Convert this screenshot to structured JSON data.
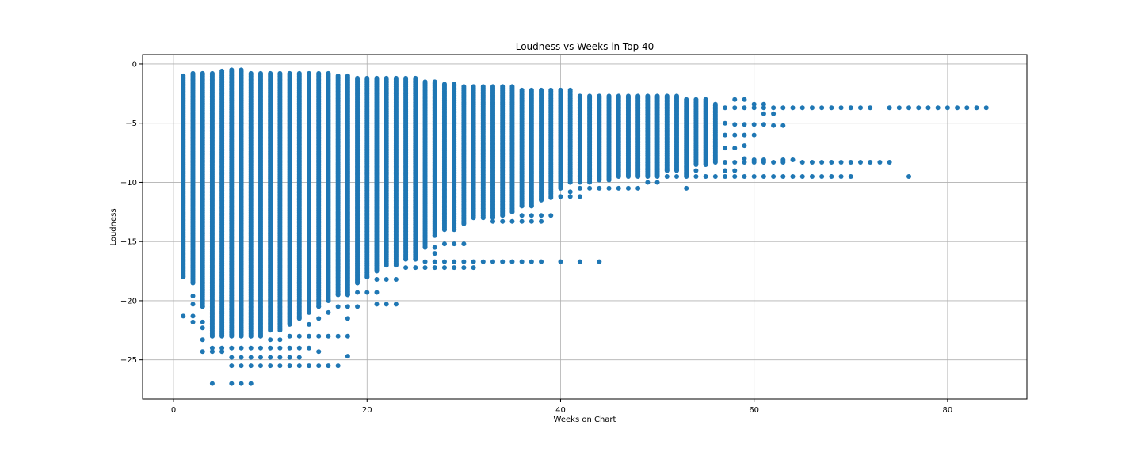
{
  "chart_data": {
    "type": "scatter",
    "title": "Loudness vs Weeks in Top 40",
    "xlabel": "Weeks on Chart",
    "ylabel": "Loudness",
    "xlim": [
      -3.2,
      88.2
    ],
    "ylim": [
      -28.3,
      0.8
    ],
    "x_ticks": [
      0,
      20,
      40,
      60,
      80
    ],
    "y_ticks": [
      0,
      -5,
      -10,
      -15,
      -20,
      -25
    ],
    "x_tick_labels": [
      "0",
      "20",
      "40",
      "60",
      "80"
    ],
    "y_tick_labels": [
      "0",
      "−5",
      "−10",
      "−15",
      "−20",
      "−25"
    ],
    "grid": true,
    "legend": "none",
    "marker_color": "#1f77b4",
    "series": [
      {
        "columns": [
          {
            "x": 1,
            "min": -18.0,
            "max": -1.0,
            "extra": [
              -21.3
            ]
          },
          {
            "x": 2,
            "min": -18.5,
            "max": -0.8,
            "extra": [
              -19.6,
              -20.3,
              -21.3,
              -21.8
            ]
          },
          {
            "x": 3,
            "min": -20.5,
            "max": -0.8,
            "extra": [
              -21.8,
              -22.3,
              -23.3,
              -24.3
            ]
          },
          {
            "x": 4,
            "min": -23.0,
            "max": -0.8,
            "extra": [
              -24.0,
              -24.3,
              -27.0
            ]
          },
          {
            "x": 5,
            "min": -23.0,
            "max": -0.6,
            "extra": [
              -24.0,
              -24.3
            ]
          },
          {
            "x": 6,
            "min": -23.0,
            "max": -0.5,
            "extra": [
              -24.0,
              -24.8,
              -25.5,
              -27.0
            ]
          },
          {
            "x": 7,
            "min": -23.0,
            "max": -0.5,
            "extra": [
              -24.0,
              -24.8,
              -25.5,
              -27.0
            ]
          },
          {
            "x": 8,
            "min": -23.0,
            "max": -0.8,
            "extra": [
              -24.0,
              -24.8,
              -25.5,
              -27.0
            ]
          },
          {
            "x": 9,
            "min": -23.0,
            "max": -0.8,
            "extra": [
              -24.0,
              -24.8,
              -25.5
            ]
          },
          {
            "x": 10,
            "min": -22.5,
            "max": -0.8,
            "extra": [
              -23.3,
              -24.0,
              -24.8,
              -25.5
            ]
          },
          {
            "x": 11,
            "min": -22.5,
            "max": -0.8,
            "extra": [
              -23.3,
              -24.0,
              -24.8,
              -25.5
            ]
          },
          {
            "x": 12,
            "min": -22.0,
            "max": -0.8,
            "extra": [
              -23.0,
              -24.0,
              -24.8,
              -25.5
            ]
          },
          {
            "x": 13,
            "min": -21.5,
            "max": -0.8,
            "extra": [
              -23.0,
              -24.0,
              -24.8,
              -25.5
            ]
          },
          {
            "x": 14,
            "min": -21.0,
            "max": -0.8,
            "extra": [
              -22.0,
              -23.0,
              -24.0,
              -25.5
            ]
          },
          {
            "x": 15,
            "min": -20.5,
            "max": -0.8,
            "extra": [
              -21.5,
              -23.0,
              -24.3,
              -25.5
            ]
          },
          {
            "x": 16,
            "min": -20.0,
            "max": -0.8,
            "extra": [
              -21.0,
              -23.0,
              -25.5
            ]
          },
          {
            "x": 17,
            "min": -19.5,
            "max": -1.0,
            "extra": [
              -20.5,
              -23.0,
              -25.5
            ]
          },
          {
            "x": 18,
            "min": -19.5,
            "max": -1.0,
            "extra": [
              -20.5,
              -21.5,
              -23.0,
              -24.7
            ]
          },
          {
            "x": 19,
            "min": -18.5,
            "max": -1.2,
            "extra": [
              -19.3,
              -20.5
            ]
          },
          {
            "x": 20,
            "min": -18.0,
            "max": -1.2,
            "extra": [
              -19.3
            ]
          },
          {
            "x": 21,
            "min": -17.5,
            "max": -1.2,
            "extra": [
              -18.2,
              -19.3,
              -20.3
            ]
          },
          {
            "x": 22,
            "min": -17.0,
            "max": -1.2,
            "extra": [
              -18.2,
              -20.3
            ]
          },
          {
            "x": 23,
            "min": -17.0,
            "max": -1.2,
            "extra": [
              -18.2,
              -20.3
            ]
          },
          {
            "x": 24,
            "min": -16.5,
            "max": -1.2,
            "extra": [
              -17.2
            ]
          },
          {
            "x": 25,
            "min": -16.5,
            "max": -1.2,
            "extra": [
              -17.2
            ]
          },
          {
            "x": 26,
            "min": -15.5,
            "max": -1.5,
            "extra": [
              -16.7,
              -17.2
            ]
          },
          {
            "x": 27,
            "min": -14.5,
            "max": -1.5,
            "extra": [
              -15.5,
              -16.0,
              -16.7,
              -17.2
            ]
          },
          {
            "x": 28,
            "min": -14.0,
            "max": -1.7,
            "extra": [
              -15.2,
              -16.7,
              -17.2
            ]
          },
          {
            "x": 29,
            "min": -14.0,
            "max": -1.7,
            "extra": [
              -15.2,
              -16.7,
              -17.2
            ]
          },
          {
            "x": 30,
            "min": -13.5,
            "max": -1.9,
            "extra": [
              -15.2,
              -16.7,
              -17.2
            ]
          },
          {
            "x": 31,
            "min": -13.0,
            "max": -1.9,
            "extra": [
              -16.7,
              -17.2
            ]
          },
          {
            "x": 32,
            "min": -13.0,
            "max": -1.9,
            "extra": [
              -16.7
            ]
          },
          {
            "x": 33,
            "min": -13.0,
            "max": -1.9,
            "extra": [
              -13.3,
              -16.7
            ]
          },
          {
            "x": 34,
            "min": -12.8,
            "max": -1.9,
            "extra": [
              -13.3,
              -16.7
            ]
          },
          {
            "x": 35,
            "min": -12.5,
            "max": -1.9,
            "extra": [
              -13.3,
              -16.7
            ]
          },
          {
            "x": 36,
            "min": -12.0,
            "max": -2.2,
            "extra": [
              -12.8,
              -13.3,
              -16.7
            ]
          },
          {
            "x": 37,
            "min": -12.0,
            "max": -2.2,
            "extra": [
              -12.8,
              -13.3,
              -16.7
            ]
          },
          {
            "x": 38,
            "min": -11.5,
            "max": -2.2,
            "extra": [
              -12.8,
              -13.3,
              -16.7
            ]
          },
          {
            "x": 39,
            "min": -11.3,
            "max": -2.2,
            "extra": [
              -12.8
            ]
          },
          {
            "x": 40,
            "min": -10.5,
            "max": -2.2,
            "extra": [
              -11.2,
              -16.7
            ]
          },
          {
            "x": 41,
            "min": -10.0,
            "max": -2.2,
            "extra": [
              -10.8,
              -11.2
            ]
          },
          {
            "x": 42,
            "min": -10.0,
            "max": -2.7,
            "extra": [
              -10.5,
              -11.2,
              -16.7
            ]
          },
          {
            "x": 43,
            "min": -10.0,
            "max": -2.7,
            "extra": [
              -10.5
            ]
          },
          {
            "x": 44,
            "min": -9.8,
            "max": -2.7,
            "extra": [
              -10.5,
              -16.7
            ]
          },
          {
            "x": 45,
            "min": -9.8,
            "max": -2.7,
            "extra": [
              -10.5
            ]
          },
          {
            "x": 46,
            "min": -9.5,
            "max": -2.7,
            "extra": [
              -10.5
            ]
          },
          {
            "x": 47,
            "min": -9.5,
            "max": -2.7,
            "extra": [
              -10.5
            ]
          },
          {
            "x": 48,
            "min": -9.5,
            "max": -2.7,
            "extra": [
              -10.5
            ]
          },
          {
            "x": 49,
            "min": -9.5,
            "max": -2.7,
            "extra": [
              -10.0
            ]
          },
          {
            "x": 50,
            "min": -9.5,
            "max": -2.7,
            "extra": [
              -10.0
            ]
          },
          {
            "x": 51,
            "min": -9.0,
            "max": -2.7,
            "extra": [
              -9.5
            ]
          },
          {
            "x": 52,
            "min": -9.0,
            "max": -2.7,
            "extra": [
              -9.5
            ]
          },
          {
            "x": 53,
            "min": -9.5,
            "max": -3.0,
            "extra": [
              -10.5
            ]
          },
          {
            "x": 54,
            "min": -8.5,
            "max": -3.0,
            "extra": [
              -9.0,
              -9.5
            ]
          },
          {
            "x": 55,
            "min": -8.5,
            "max": -3.0,
            "extra": [
              -9.5
            ]
          },
          {
            "x": 56,
            "min": -8.3,
            "max": -3.4,
            "extra": [
              -9.5
            ]
          }
        ],
        "points": [
          [
            57,
            -3.7
          ],
          [
            57,
            -5.0
          ],
          [
            57,
            -6.0
          ],
          [
            57,
            -7.1
          ],
          [
            57,
            -8.3
          ],
          [
            57,
            -9.0
          ],
          [
            57,
            -9.5
          ],
          [
            58,
            -3.0
          ],
          [
            58,
            -3.7
          ],
          [
            58,
            -5.1
          ],
          [
            58,
            -6.0
          ],
          [
            58,
            -7.1
          ],
          [
            58,
            -8.3
          ],
          [
            58,
            -9.0
          ],
          [
            58,
            -9.5
          ],
          [
            59,
            -3.0
          ],
          [
            59,
            -3.7
          ],
          [
            59,
            -5.1
          ],
          [
            59,
            -6.0
          ],
          [
            59,
            -6.9
          ],
          [
            59,
            -8.0
          ],
          [
            59,
            -8.3
          ],
          [
            59,
            -9.5
          ],
          [
            60,
            -3.4
          ],
          [
            60,
            -3.7
          ],
          [
            60,
            -5.1
          ],
          [
            60,
            -6.0
          ],
          [
            60,
            -8.1
          ],
          [
            60,
            -8.3
          ],
          [
            60,
            -9.5
          ],
          [
            61,
            -3.4
          ],
          [
            61,
            -3.7
          ],
          [
            61,
            -4.2
          ],
          [
            61,
            -5.1
          ],
          [
            61,
            -8.1
          ],
          [
            61,
            -8.3
          ],
          [
            61,
            -9.5
          ],
          [
            62,
            -3.7
          ],
          [
            62,
            -4.2
          ],
          [
            62,
            -5.2
          ],
          [
            62,
            -8.3
          ],
          [
            62,
            -9.5
          ],
          [
            63,
            -3.7
          ],
          [
            63,
            -5.2
          ],
          [
            63,
            -8.1
          ],
          [
            63,
            -8.3
          ],
          [
            63,
            -9.5
          ],
          [
            64,
            -3.7
          ],
          [
            64,
            -8.1
          ],
          [
            64,
            -9.5
          ],
          [
            65,
            -3.7
          ],
          [
            65,
            -8.3
          ],
          [
            65,
            -9.5
          ],
          [
            66,
            -3.7
          ],
          [
            66,
            -8.3
          ],
          [
            66,
            -9.5
          ],
          [
            67,
            -3.7
          ],
          [
            67,
            -8.3
          ],
          [
            67,
            -9.5
          ],
          [
            68,
            -3.7
          ],
          [
            68,
            -8.3
          ],
          [
            68,
            -9.5
          ],
          [
            69,
            -3.7
          ],
          [
            69,
            -8.3
          ],
          [
            69,
            -9.5
          ],
          [
            70,
            -3.7
          ],
          [
            70,
            -8.3
          ],
          [
            70,
            -9.5
          ],
          [
            71,
            -3.7
          ],
          [
            71,
            -8.3
          ],
          [
            72,
            -3.7
          ],
          [
            72,
            -8.3
          ],
          [
            73,
            -8.3
          ],
          [
            74,
            -3.7
          ],
          [
            74,
            -8.3
          ],
          [
            75,
            -3.7
          ],
          [
            76,
            -3.7
          ],
          [
            76,
            -9.5
          ],
          [
            77,
            -3.7
          ],
          [
            78,
            -3.7
          ],
          [
            79,
            -3.7
          ],
          [
            80,
            -3.7
          ],
          [
            81,
            -3.7
          ],
          [
            82,
            -3.7
          ],
          [
            83,
            -3.7
          ],
          [
            84,
            -3.7
          ]
        ]
      }
    ]
  }
}
